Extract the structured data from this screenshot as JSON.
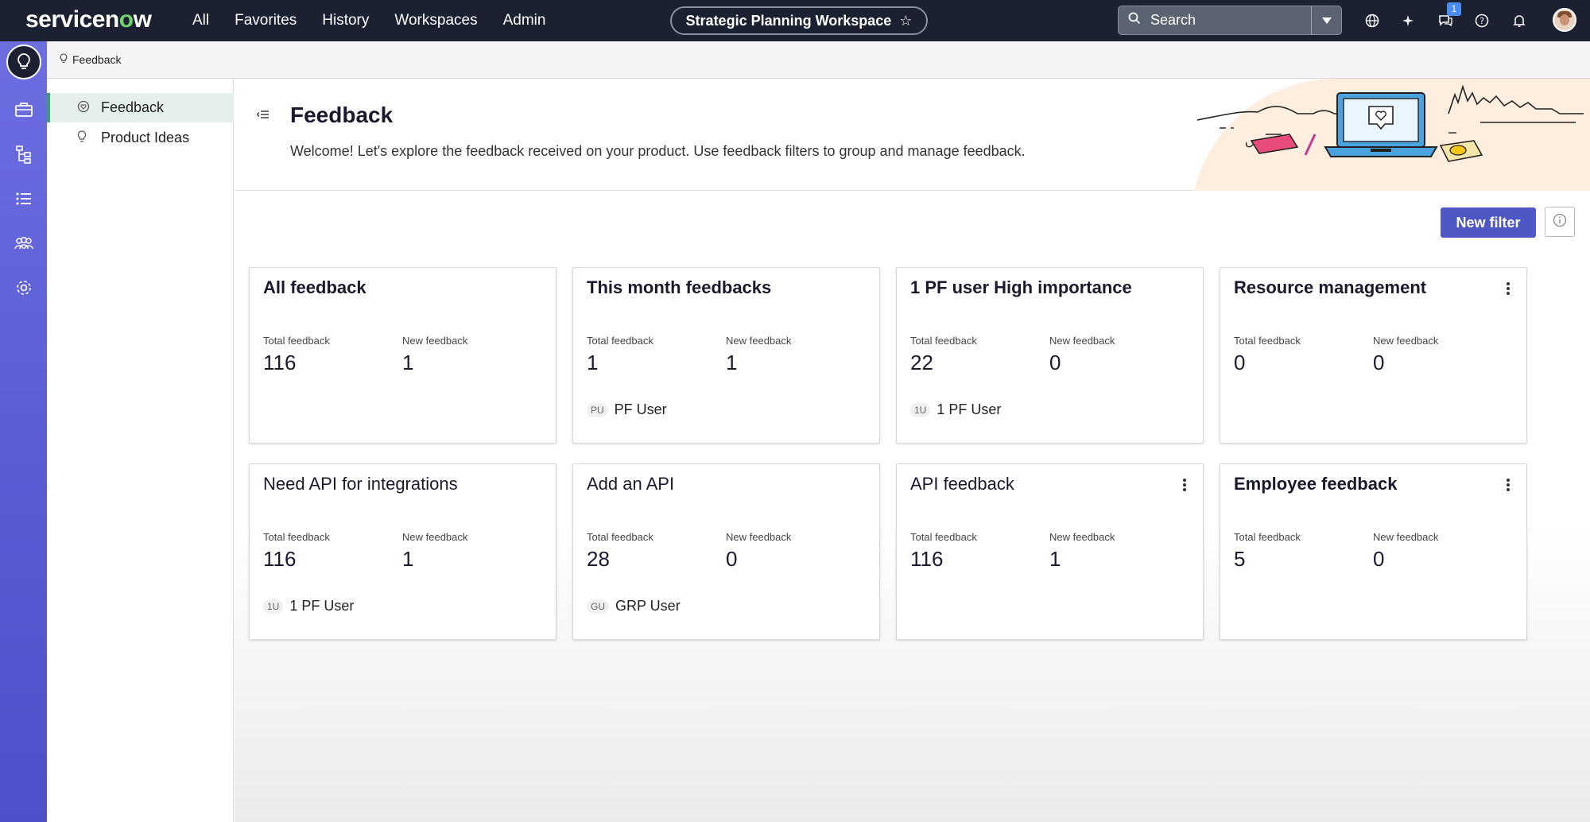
{
  "topbar": {
    "logo_prefix": "servicen",
    "logo_o": "o",
    "logo_suffix": "w",
    "nav": [
      "All",
      "Favorites",
      "History",
      "Workspaces",
      "Admin"
    ],
    "workspace": "Strategic Planning Workspace",
    "search_placeholder": "Search",
    "notification_count": "1"
  },
  "breadcrumb": "Feedback",
  "subnav": {
    "items": [
      {
        "label": "Feedback",
        "icon": "chat-heart-icon",
        "active": true
      },
      {
        "label": "Product Ideas",
        "icon": "lightbulb-icon",
        "active": false
      }
    ]
  },
  "header": {
    "title": "Feedback",
    "subtitle": "Welcome! Let's explore the feedback received on your product. Use feedback filters to group and manage feedback."
  },
  "actions": {
    "new_filter": "New filter"
  },
  "cards": [
    {
      "title": "All feedback",
      "total_label": "Total feedback",
      "new_label": "New feedback",
      "total": "116",
      "new": "1",
      "owner_initials": "",
      "owner": "",
      "menu": false
    },
    {
      "title": "This month feedbacks",
      "total_label": "Total feedback",
      "new_label": "New feedback",
      "total": "1",
      "new": "1",
      "owner_initials": "PU",
      "owner": "PF User",
      "menu": false
    },
    {
      "title": "1 PF user High importance",
      "total_label": "Total feedback",
      "new_label": "New feedback",
      "total": "22",
      "new": "0",
      "owner_initials": "1U",
      "owner": "1 PF User",
      "menu": false
    },
    {
      "title": "Resource management",
      "total_label": "Total feedback",
      "new_label": "New feedback",
      "total": "0",
      "new": "0",
      "owner_initials": "",
      "owner": "",
      "menu": true
    },
    {
      "title": "Need API for integrations",
      "total_label": "Total feedback",
      "new_label": "New feedback",
      "total": "116",
      "new": "1",
      "owner_initials": "1U",
      "owner": "1 PF User",
      "menu": false
    },
    {
      "title": "Add an API",
      "total_label": "Total feedback",
      "new_label": "New feedback",
      "total": "28",
      "new": "0",
      "owner_initials": "GU",
      "owner": "GRP User",
      "menu": false
    },
    {
      "title": "API feedback",
      "total_label": "Total feedback",
      "new_label": "New feedback",
      "total": "116",
      "new": "1",
      "owner_initials": "",
      "owner": "",
      "menu": true
    },
    {
      "title": "Employee feedback",
      "total_label": "Total feedback",
      "new_label": "New feedback",
      "total": "5",
      "new": "0",
      "owner_initials": "",
      "owner": "",
      "menu": true
    }
  ],
  "colors": {
    "topbar": "#1b2130",
    "rail": "#5b5cd4",
    "primary_button": "#4e57c4",
    "active_nav": "#3c9b75"
  }
}
